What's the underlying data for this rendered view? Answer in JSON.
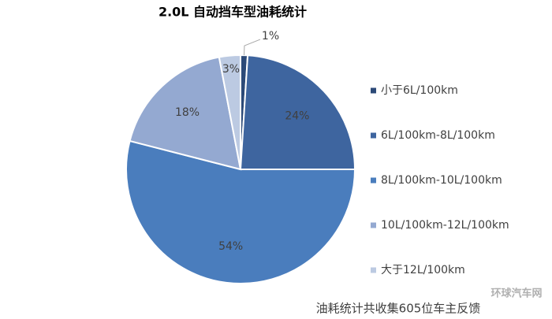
{
  "chart_data": {
    "type": "pie",
    "title": "2.0L 自动挡车型油耗统计",
    "categories": [
      "小于6L/100km",
      "6L/100km-8L/100km",
      "8L/100km-10L/100km",
      "10L/100km-12L/100km",
      "大于12L/100km"
    ],
    "values": [
      1,
      24,
      54,
      18,
      3
    ],
    "value_labels": [
      "1%",
      "24%",
      "54%",
      "18%",
      "3%"
    ],
    "colors": [
      "#2c4a78",
      "#3e659f",
      "#4a7dbd",
      "#94a9d1",
      "#bccae2"
    ],
    "legend": "right",
    "footnote": "油耗统计共收集605位车主反馈",
    "watermark": "环球汽车网"
  }
}
